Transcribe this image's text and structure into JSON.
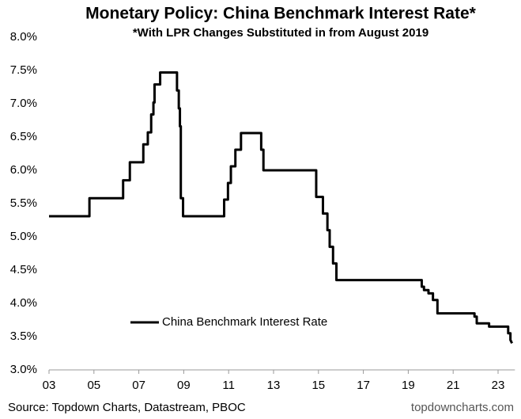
{
  "chart_data": {
    "type": "line",
    "title": "Monetary Policy: China Benchmark Interest Rate*",
    "subtitle": "*With LPR Changes Substituted in from August 2019",
    "source": "Source: Topdown Charts, Datastream, PBOC",
    "watermark": "topdowncharts.com",
    "legend_loc": "lower left",
    "xlim": [
      2003,
      2023.75
    ],
    "ylim": [
      3,
      8
    ],
    "xticks": [
      {
        "value": 2003,
        "label": "03"
      },
      {
        "value": 2005,
        "label": "05"
      },
      {
        "value": 2007,
        "label": "07"
      },
      {
        "value": 2009,
        "label": "09"
      },
      {
        "value": 2011,
        "label": "11"
      },
      {
        "value": 2013,
        "label": "13"
      },
      {
        "value": 2015,
        "label": "15"
      },
      {
        "value": 2017,
        "label": "17"
      },
      {
        "value": 2019,
        "label": "19"
      },
      {
        "value": 2021,
        "label": "21"
      },
      {
        "value": 2023,
        "label": "23"
      }
    ],
    "yticks": [
      {
        "value": 3,
        "label": "3.0%"
      },
      {
        "value": 3.5,
        "label": "3.5%"
      },
      {
        "value": 4,
        "label": "4.0%"
      },
      {
        "value": 4.5,
        "label": "4.5%"
      },
      {
        "value": 5,
        "label": "5.0%"
      },
      {
        "value": 5.5,
        "label": "5.5%"
      },
      {
        "value": 6,
        "label": "6.0%"
      },
      {
        "value": 6.5,
        "label": "6.5%"
      },
      {
        "value": 7,
        "label": "7.0%"
      },
      {
        "value": 7.5,
        "label": "7.5%"
      },
      {
        "value": 8,
        "label": "8.0%"
      }
    ],
    "x": [
      2003,
      2004.8,
      2004.8,
      2006.3,
      2006.3,
      2006.6,
      2006.6,
      2007.2,
      2007.2,
      2007.4,
      2007.4,
      2007.55,
      2007.55,
      2007.65,
      2007.65,
      2007.7,
      2007.7,
      2007.95,
      2007.95,
      2008.7,
      2008.7,
      2008.78,
      2008.78,
      2008.83,
      2008.83,
      2008.87,
      2008.87,
      2008.97,
      2008.97,
      2010.8,
      2010.8,
      2010.97,
      2010.97,
      2011.1,
      2011.1,
      2011.3,
      2011.3,
      2011.55,
      2011.55,
      2012.45,
      2012.45,
      2012.55,
      2012.55,
      2014.9,
      2014.9,
      2015.2,
      2015.2,
      2015.4,
      2015.4,
      2015.5,
      2015.5,
      2015.65,
      2015.65,
      2015.8,
      2015.8,
      2019.6,
      2019.6,
      2019.7,
      2019.7,
      2019.9,
      2019.9,
      2020.1,
      2020.1,
      2020.3,
      2020.3,
      2021.95,
      2021.95,
      2022.05,
      2022.05,
      2022.6,
      2022.6,
      2023.45,
      2023.45,
      2023.55,
      2023.55,
      2023.62
    ],
    "series": [
      {
        "name": "China Benchmark Interest Rate",
        "color": "#000000",
        "values": [
          5.31,
          5.31,
          5.58,
          5.58,
          5.85,
          5.85,
          6.12,
          6.12,
          6.39,
          6.39,
          6.57,
          6.57,
          6.84,
          6.84,
          7.02,
          7.02,
          7.29,
          7.29,
          7.47,
          7.47,
          7.2,
          7.2,
          6.93,
          6.93,
          6.66,
          6.66,
          5.58,
          5.58,
          5.31,
          5.31,
          5.56,
          5.56,
          5.81,
          5.81,
          6.06,
          6.06,
          6.31,
          6.31,
          6.56,
          6.56,
          6.31,
          6.31,
          6.0,
          6.0,
          5.6,
          5.6,
          5.35,
          5.35,
          5.1,
          5.1,
          4.85,
          4.85,
          4.6,
          4.6,
          4.35,
          4.35,
          4.25,
          4.25,
          4.2,
          4.2,
          4.15,
          4.15,
          4.05,
          4.05,
          3.85,
          3.85,
          3.8,
          3.8,
          3.7,
          3.7,
          3.65,
          3.65,
          3.55,
          3.55,
          3.45,
          3.4
        ]
      }
    ]
  }
}
